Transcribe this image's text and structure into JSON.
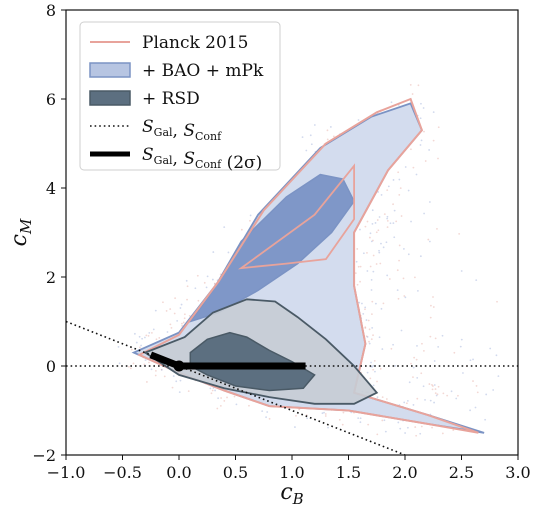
{
  "chart_data": {
    "type": "scatter",
    "xlabel": "c_B",
    "ylabel": "c_M",
    "xlim": [
      -1.0,
      3.0
    ],
    "ylim": [
      -2,
      8
    ],
    "x_ticks": [
      "−1.0",
      "−0.5",
      "0.0",
      "0.5",
      "1.0",
      "1.5",
      "2.0",
      "2.5",
      "3.0"
    ],
    "y_ticks": [
      "−2",
      "0",
      "2",
      "4",
      "6",
      "8"
    ],
    "legend_position": "upper-left",
    "series": [
      {
        "name": "Planck 2015",
        "kind": "contour-line",
        "color": "#e8a39b",
        "outer_contour": [
          [
            -0.35,
            0.25
          ],
          [
            0.0,
            0.7
          ],
          [
            0.35,
            1.9
          ],
          [
            0.75,
            3.5
          ],
          [
            1.3,
            5.0
          ],
          [
            1.75,
            5.7
          ],
          [
            2.05,
            6.0
          ],
          [
            2.15,
            5.3
          ],
          [
            1.85,
            4.4
          ],
          [
            1.55,
            3.0
          ],
          [
            1.55,
            1.8
          ],
          [
            1.65,
            0.5
          ],
          [
            1.55,
            -0.6
          ],
          [
            2.2,
            -1.1
          ],
          [
            2.65,
            -1.5
          ],
          [
            2.2,
            -1.3
          ],
          [
            1.5,
            -1.0
          ],
          [
            0.8,
            -0.9
          ],
          [
            0.4,
            -0.55
          ],
          [
            0.0,
            -0.15
          ],
          [
            -0.35,
            0.25
          ]
        ],
        "inner_contour": [
          [
            0.55,
            2.2
          ],
          [
            1.2,
            3.4
          ],
          [
            1.55,
            4.5
          ],
          [
            1.55,
            3.3
          ],
          [
            1.3,
            2.4
          ],
          [
            0.95,
            2.3
          ],
          [
            0.55,
            2.2
          ]
        ]
      },
      {
        "name": "+ BAO + mPk",
        "kind": "filled-contour",
        "color": "#7b93c4",
        "outer_contour": [
          [
            -0.4,
            0.3
          ],
          [
            0.0,
            0.75
          ],
          [
            0.35,
            1.9
          ],
          [
            0.7,
            3.4
          ],
          [
            1.25,
            4.9
          ],
          [
            1.7,
            5.6
          ],
          [
            2.05,
            5.9
          ],
          [
            2.15,
            5.3
          ],
          [
            1.85,
            4.4
          ],
          [
            1.55,
            3.0
          ],
          [
            1.55,
            1.8
          ],
          [
            1.65,
            0.5
          ],
          [
            1.55,
            -0.6
          ],
          [
            2.2,
            -1.1
          ],
          [
            2.7,
            -1.5
          ],
          [
            2.2,
            -1.3
          ],
          [
            1.5,
            -1.0
          ],
          [
            0.8,
            -0.9
          ],
          [
            0.4,
            -0.55
          ],
          [
            0.0,
            -0.15
          ],
          [
            -0.4,
            0.3
          ]
        ],
        "inner_contour": [
          [
            0.1,
            1.0
          ],
          [
            0.3,
            1.7
          ],
          [
            0.55,
            2.8
          ],
          [
            0.95,
            3.8
          ],
          [
            1.25,
            4.3
          ],
          [
            1.45,
            4.2
          ],
          [
            1.55,
            3.7
          ],
          [
            1.35,
            3.0
          ],
          [
            1.05,
            2.3
          ],
          [
            0.7,
            1.7
          ],
          [
            0.35,
            1.2
          ],
          [
            0.1,
            1.0
          ]
        ]
      },
      {
        "name": "+ RSD",
        "kind": "filled-contour",
        "color": "#5c6f80",
        "outer_contour": [
          [
            -0.3,
            0.3
          ],
          [
            0.05,
            0.65
          ],
          [
            0.3,
            1.2
          ],
          [
            0.6,
            1.5
          ],
          [
            0.85,
            1.45
          ],
          [
            1.05,
            1.1
          ],
          [
            1.3,
            0.6
          ],
          [
            1.55,
            0.0
          ],
          [
            1.75,
            -0.6
          ],
          [
            1.55,
            -0.85
          ],
          [
            1.2,
            -0.85
          ],
          [
            0.8,
            -0.7
          ],
          [
            0.4,
            -0.5
          ],
          [
            0.0,
            -0.2
          ],
          [
            -0.3,
            0.3
          ]
        ],
        "inner_contour": [
          [
            0.1,
            0.3
          ],
          [
            0.25,
            0.6
          ],
          [
            0.45,
            0.75
          ],
          [
            0.6,
            0.65
          ],
          [
            0.8,
            0.35
          ],
          [
            1.0,
            0.1
          ],
          [
            1.2,
            -0.2
          ],
          [
            1.1,
            -0.5
          ],
          [
            0.8,
            -0.55
          ],
          [
            0.5,
            -0.45
          ],
          [
            0.25,
            -0.2
          ],
          [
            0.1,
            0.0
          ],
          [
            0.1,
            0.3
          ]
        ]
      },
      {
        "name": "S_Gal, S_Conf",
        "kind": "dotted-lines",
        "color": "#111111",
        "lines": [
          {
            "x": [
              -1.0,
              3.0
            ],
            "y": [
              0,
              0
            ]
          },
          {
            "x": [
              -1.0,
              2.0
            ],
            "y": [
              1.0,
              -2.0
            ]
          }
        ]
      },
      {
        "name": "S_Gal, S_Conf (2σ)",
        "kind": "thick-line",
        "color": "#000000",
        "segments": [
          {
            "x": [
              -0.25,
              0.0
            ],
            "y": [
              0.25,
              0.0
            ]
          },
          {
            "x": [
              0.0,
              1.12
            ],
            "y": [
              0.0,
              0.0
            ]
          }
        ],
        "marker": {
          "x": 0.0,
          "y": 0.0
        }
      }
    ],
    "legend": [
      {
        "label": "Planck 2015",
        "style": "line",
        "color": "#e8a39b"
      },
      {
        "label": "+ BAO + mPk",
        "style": "patch",
        "fill": "#b7c5e2",
        "edge": "#7b93c4"
      },
      {
        "label": "+ RSD",
        "style": "patch",
        "fill": "#5c6f80",
        "edge": "#4a5a66"
      },
      {
        "label_html": "S<tspan font-size='11' baseline-shift='sub'>Gal</tspan>, S<tspan font-size='11' baseline-shift='sub'>Conf</tspan>",
        "label": "S_Gal, S_Conf",
        "style": "dotted"
      },
      {
        "label": "S_Gal, S_Conf (2σ)",
        "style": "thick"
      }
    ]
  }
}
